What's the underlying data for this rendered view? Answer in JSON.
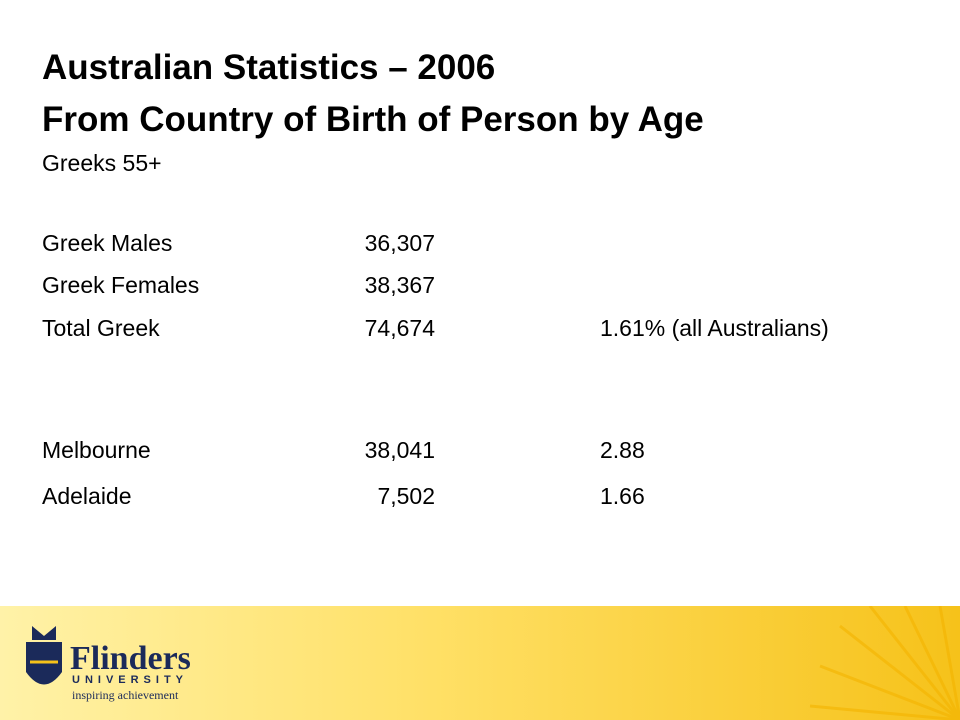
{
  "header": {
    "title_lines": [
      "Australian Statistics – 2006",
      "From Country of Birth of Person by Age"
    ],
    "subtitle": "Greeks 55+"
  },
  "table": {
    "rows": [
      [
        "Greek Males",
        "36,307",
        null
      ],
      [
        "Greek Females",
        "38,367",
        null
      ],
      [
        "Total Greek",
        "74,674",
        "1.61% (all Australians)"
      ],
      [
        "Melbourne",
        "38,041",
        "2.88"
      ],
      [
        "Adelaide",
        "7,502",
        "1.66"
      ]
    ]
  },
  "footer": {
    "logo_name": "Flinders",
    "logo_sub": "UNIVERSITY",
    "tagline": "inspiring achievement"
  }
}
